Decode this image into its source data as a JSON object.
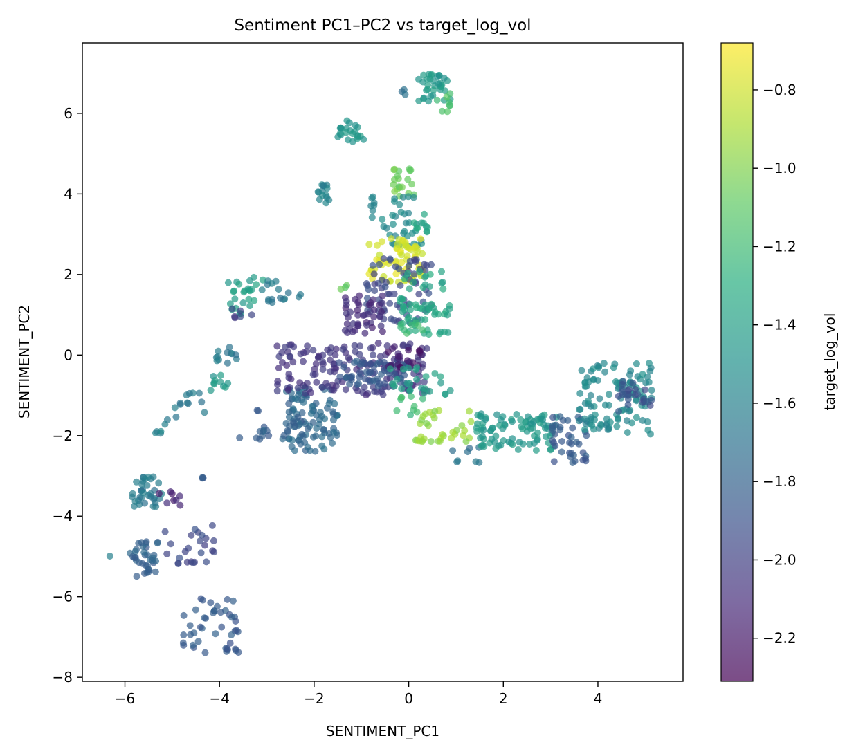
{
  "chart_data": {
    "type": "scatter",
    "title": "Sentiment PC1–PC2 vs target_log_vol",
    "xlabel": "SENTIMENT_PC1",
    "ylabel": "SENTIMENT_PC2",
    "xlim": [
      -6.9,
      5.8
    ],
    "ylim": [
      -8.1,
      7.75
    ],
    "xticks": [
      -6,
      -4,
      -2,
      0,
      2,
      4
    ],
    "yticks": [
      -8,
      -6,
      -4,
      -2,
      0,
      2,
      4,
      6
    ],
    "grid": false,
    "colorbar": {
      "label": "target_log_vol",
      "range": [
        -2.31,
        -0.68
      ],
      "ticks": [
        -2.2,
        -2.0,
        -1.8,
        -1.6,
        -1.4,
        -1.2,
        -1.0,
        -0.8
      ],
      "colormap": "viridis",
      "alpha": 0.7
    },
    "clusters": [
      {
        "x": [
          0.2,
          0.9
        ],
        "y": [
          6.3,
          7.0
        ],
        "c": -1.45,
        "n": 34
      },
      {
        "x": [
          0.6,
          0.9
        ],
        "y": [
          6.0,
          6.5
        ],
        "c": -1.15,
        "n": 8
      },
      {
        "x": [
          -0.2,
          0.1
        ],
        "y": [
          6.4,
          6.6
        ],
        "c": -1.75,
        "n": 3
      },
      {
        "x": [
          -1.5,
          -0.95
        ],
        "y": [
          5.3,
          5.85
        ],
        "c": -1.45,
        "n": 22
      },
      {
        "x": [
          -1.95,
          -1.65
        ],
        "y": [
          3.75,
          4.3
        ],
        "c": -1.6,
        "n": 14
      },
      {
        "x": [
          -0.4,
          0.15
        ],
        "y": [
          3.9,
          4.7
        ],
        "c": -1.05,
        "n": 20
      },
      {
        "x": [
          -0.8,
          0.3
        ],
        "y": [
          2.7,
          4.0
        ],
        "c": -1.55,
        "n": 40
      },
      {
        "x": [
          0.1,
          0.4
        ],
        "y": [
          2.9,
          3.5
        ],
        "c": -1.35,
        "n": 10
      },
      {
        "x": [
          -0.95,
          0.3
        ],
        "y": [
          1.8,
          2.9
        ],
        "c": -0.78,
        "n": 70
      },
      {
        "x": [
          -0.9,
          0.5
        ],
        "y": [
          0.8,
          2.4
        ],
        "c": -1.95,
        "n": 70
      },
      {
        "x": [
          -0.2,
          0.9
        ],
        "y": [
          0.5,
          2.1
        ],
        "c": -1.35,
        "n": 60
      },
      {
        "x": [
          -0.2,
          0.3
        ],
        "y": [
          0.4,
          0.9
        ],
        "c": -1.2,
        "n": 8
      },
      {
        "x": [
          -1.35,
          -0.55
        ],
        "y": [
          0.5,
          1.5
        ],
        "c": -2.1,
        "n": 45
      },
      {
        "x": [
          -1.5,
          -1.3
        ],
        "y": [
          1.5,
          1.75
        ],
        "c": -1.05,
        "n": 3
      },
      {
        "x": [
          -3.9,
          -3.0
        ],
        "y": [
          1.0,
          1.95
        ],
        "c": -1.4,
        "n": 25
      },
      {
        "x": [
          -3.8,
          -3.3
        ],
        "y": [
          0.9,
          1.2
        ],
        "c": -2.0,
        "n": 6
      },
      {
        "x": [
          -3.2,
          -2.2
        ],
        "y": [
          1.3,
          1.9
        ],
        "c": -1.65,
        "n": 16
      },
      {
        "x": [
          -4.1,
          -3.6
        ],
        "y": [
          -0.2,
          0.2
        ],
        "c": -1.65,
        "n": 12
      },
      {
        "x": [
          -4.4,
          -3.8
        ],
        "y": [
          -0.9,
          -0.5
        ],
        "c": -1.45,
        "n": 10
      },
      {
        "x": [
          -5.0,
          -4.3
        ],
        "y": [
          -1.6,
          -0.9
        ],
        "c": -1.65,
        "n": 12
      },
      {
        "x": [
          -5.4,
          -5.1
        ],
        "y": [
          -2.1,
          -1.6
        ],
        "c": -1.6,
        "n": 6
      },
      {
        "x": [
          -3.6,
          -3.5
        ],
        "y": [
          -2.1,
          -2.05
        ],
        "c": -1.8,
        "n": 1
      },
      {
        "x": [
          -2.6,
          -1.5
        ],
        "y": [
          -2.4,
          -0.8
        ],
        "c": -1.75,
        "n": 90
      },
      {
        "x": [
          -3.3,
          -2.2
        ],
        "y": [
          -2.1,
          -1.2
        ],
        "c": -1.8,
        "n": 25
      },
      {
        "x": [
          -2.8,
          0.4
        ],
        "y": [
          -1.0,
          0.3
        ],
        "c": -2.05,
        "n": 160
      },
      {
        "x": [
          -1.5,
          0.0
        ],
        "y": [
          -0.8,
          -0.1
        ],
        "c": -1.85,
        "n": 60
      },
      {
        "x": [
          -0.5,
          0.4
        ],
        "y": [
          -0.3,
          0.4
        ],
        "c": -2.2,
        "n": 20
      },
      {
        "x": [
          -0.4,
          0.9
        ],
        "y": [
          -1.0,
          -0.3
        ],
        "c": -1.4,
        "n": 25
      },
      {
        "x": [
          -0.35,
          0.35
        ],
        "y": [
          -1.5,
          -0.9
        ],
        "c": -1.2,
        "n": 10
      },
      {
        "x": [
          0.1,
          1.4
        ],
        "y": [
          -2.15,
          -1.35
        ],
        "c": -0.95,
        "n": 35
      },
      {
        "x": [
          0.9,
          1.5
        ],
        "y": [
          -2.8,
          -2.0
        ],
        "c": -1.7,
        "n": 8
      },
      {
        "x": [
          1.4,
          3.2
        ],
        "y": [
          -2.4,
          -1.4
        ],
        "c": -1.45,
        "n": 90
      },
      {
        "x": [
          3.0,
          3.8
        ],
        "y": [
          -2.7,
          -1.5
        ],
        "c": -1.85,
        "n": 40
      },
      {
        "x": [
          3.6,
          5.2
        ],
        "y": [
          -2.0,
          -0.2
        ],
        "c": -1.55,
        "n": 110
      },
      {
        "x": [
          4.4,
          5.2
        ],
        "y": [
          -1.4,
          -0.6
        ],
        "c": -1.9,
        "n": 25
      },
      {
        "x": [
          -5.9,
          -5.2
        ],
        "y": [
          -3.8,
          -3.0
        ],
        "c": -1.65,
        "n": 35
      },
      {
        "x": [
          -5.4,
          -4.8
        ],
        "y": [
          -3.9,
          -3.3
        ],
        "c": -2.15,
        "n": 8
      },
      {
        "x": [
          -4.4,
          -4.2
        ],
        "y": [
          -3.1,
          -2.85
        ],
        "c": -1.85,
        "n": 3
      },
      {
        "x": [
          -5.9,
          -5.3
        ],
        "y": [
          -5.5,
          -4.6
        ],
        "c": -1.8,
        "n": 35
      },
      {
        "x": [
          -5.2,
          -4.1
        ],
        "y": [
          -5.2,
          -4.2
        ],
        "c": -1.95,
        "n": 25
      },
      {
        "x": [
          -6.35,
          -6.3
        ],
        "y": [
          -5.0,
          -4.95
        ],
        "c": -1.65,
        "n": 1
      },
      {
        "x": [
          -4.8,
          -3.6
        ],
        "y": [
          -7.4,
          -6.0
        ],
        "c": -1.85,
        "n": 45
      }
    ]
  }
}
